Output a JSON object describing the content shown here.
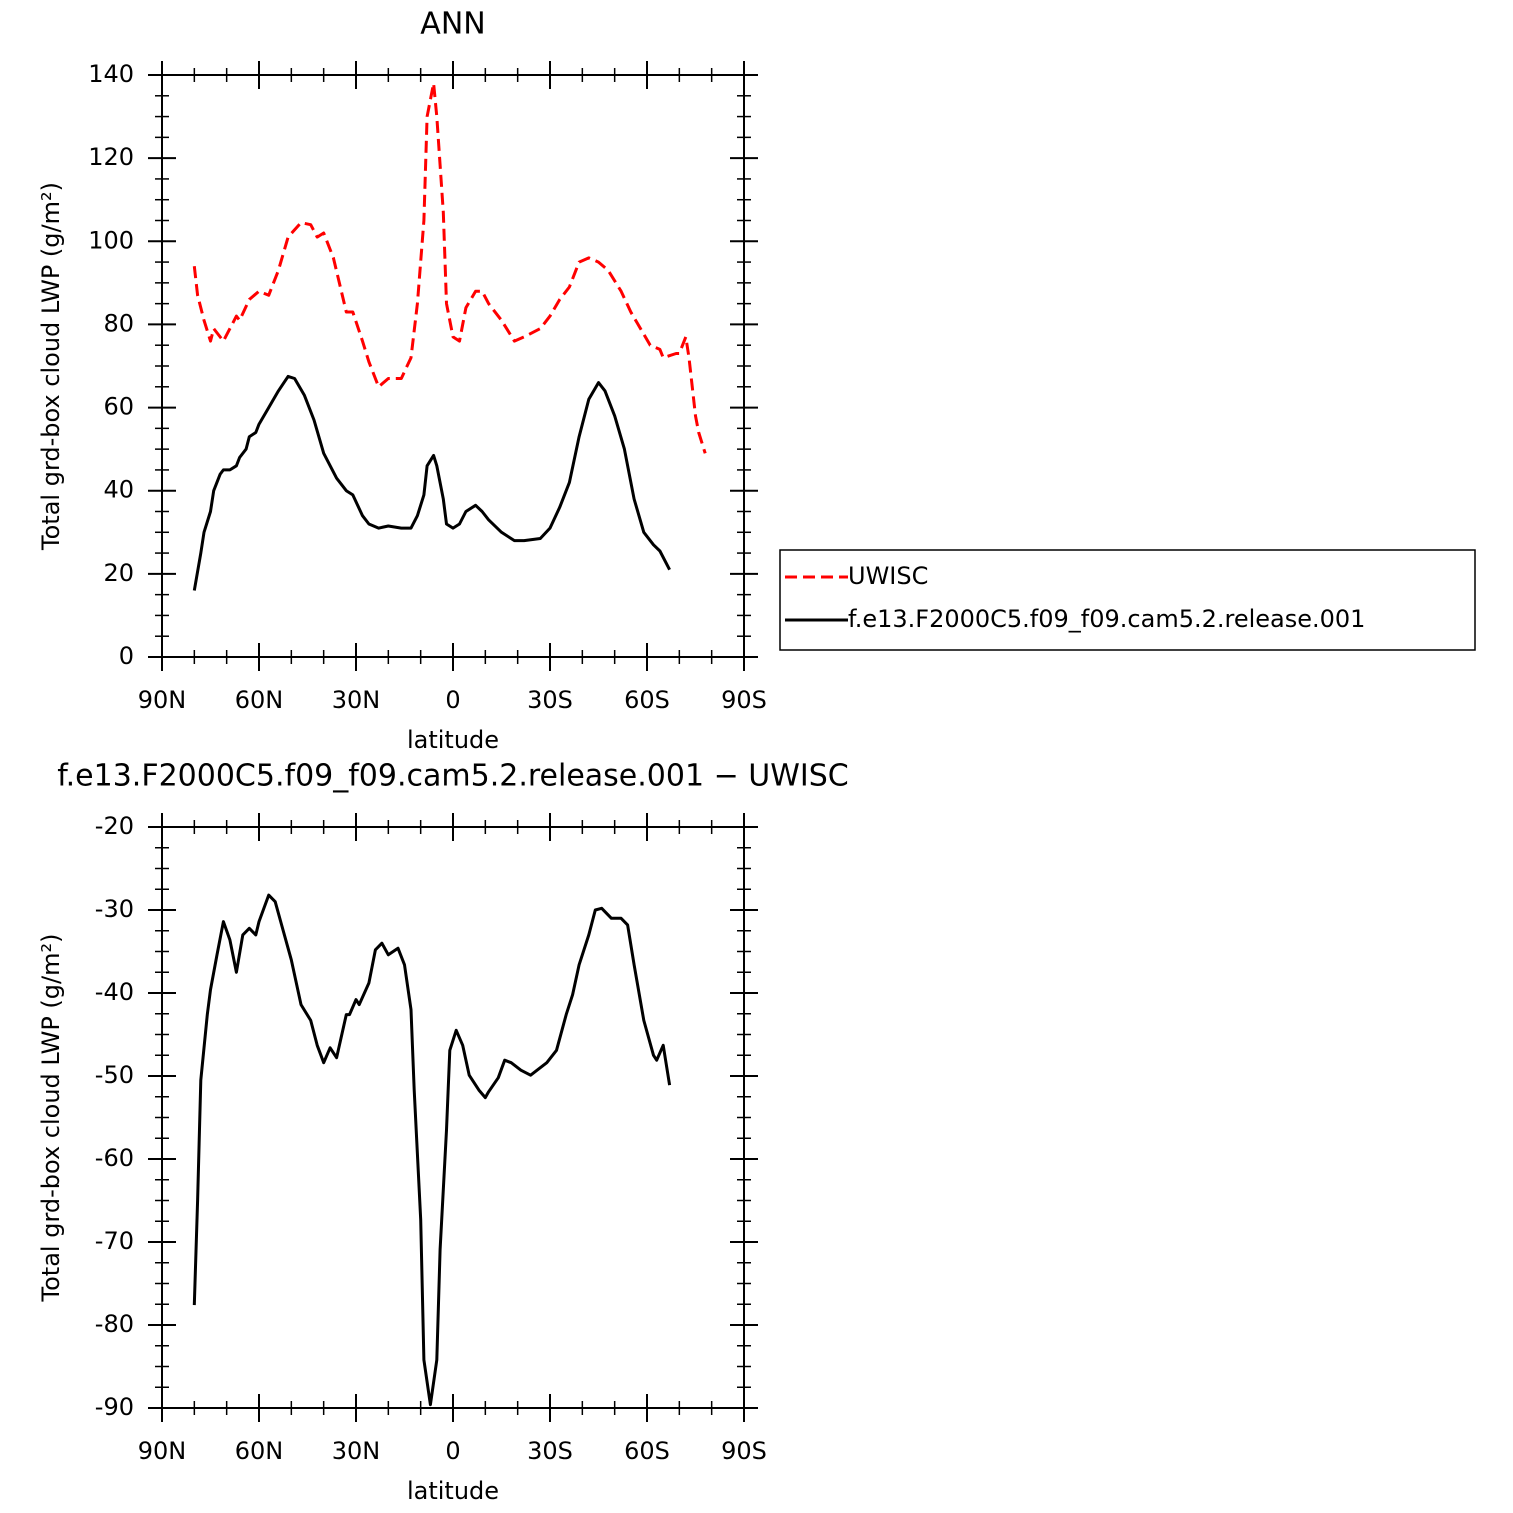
{
  "chart_data": [
    {
      "type": "line",
      "title": "ANN",
      "xlabel": "latitude",
      "ylabel": "Total grd-box cloud LWP (g/m²)",
      "xlim": [
        90,
        -90
      ],
      "xticks": [
        {
          "value": 90,
          "label": "90N"
        },
        {
          "value": 60,
          "label": "60N"
        },
        {
          "value": 30,
          "label": "30N"
        },
        0,
        {
          "value": -30,
          "label": "30S"
        },
        {
          "value": -60,
          "label": "60S"
        },
        {
          "value": -90,
          "label": "90S"
        }
      ],
      "ylim": [
        0,
        140
      ],
      "yticks": [
        0,
        20,
        40,
        60,
        80,
        100,
        120,
        140
      ],
      "legend": "right",
      "series": [
        {
          "name": "UWISC",
          "color": "#ff0000",
          "style": "dashed",
          "x": [
            80,
            79,
            77,
            75,
            74,
            71,
            67,
            66,
            63,
            60,
            57,
            54,
            51,
            47,
            44,
            42,
            40,
            37,
            33,
            31,
            28,
            26,
            23,
            20,
            16,
            13,
            11,
            9,
            8,
            6,
            5,
            3,
            2,
            0,
            -2,
            -4,
            -7,
            -9,
            -11,
            -15,
            -19,
            -22,
            -27,
            -30,
            -33,
            -36,
            -39,
            -42,
            -45,
            -48,
            -52,
            -55,
            -58,
            -61,
            -64,
            -65,
            -69,
            -70,
            -72,
            -73,
            -75,
            -76,
            -78
          ],
          "values": [
            94,
            87,
            81,
            76,
            79,
            76,
            82,
            81,
            86,
            88,
            87,
            93,
            101,
            104.5,
            104,
            101,
            102,
            96,
            83,
            83,
            76,
            71,
            65,
            67,
            67,
            72,
            85,
            105,
            130,
            138,
            130,
            107,
            85,
            77,
            76,
            84,
            88,
            88,
            85,
            81,
            76,
            77,
            79,
            82,
            86,
            89,
            95,
            96,
            95,
            93,
            88,
            83,
            79,
            75,
            74,
            72,
            73,
            73,
            77,
            72,
            58,
            54,
            49
          ]
        },
        {
          "name": "f.e13.F2000C5.f09_f09.cam5.2.release.001",
          "color": "#000000",
          "style": "solid",
          "x": [
            80,
            78,
            77,
            75,
            74,
            72,
            71,
            69,
            67,
            66,
            64,
            63,
            61,
            60,
            57,
            54,
            51,
            49,
            46,
            43,
            40,
            36,
            33,
            31,
            28,
            26,
            23,
            20,
            16,
            13,
            11,
            9,
            8,
            6,
            5,
            3,
            2,
            0,
            -2,
            -4,
            -7,
            -9,
            -11,
            -15,
            -19,
            -22,
            -27,
            -30,
            -33,
            -36,
            -39,
            -42,
            -45,
            -47,
            -50,
            -53,
            -56,
            -59,
            -62,
            -64,
            -67
          ],
          "values": [
            16,
            25,
            30,
            35,
            40,
            44,
            45,
            45,
            46,
            48,
            50,
            53,
            54,
            56,
            60,
            64,
            67.5,
            67,
            63,
            57,
            49,
            43,
            40,
            39,
            34,
            32,
            31,
            31.5,
            31,
            31,
            34,
            39,
            46,
            48.5,
            46,
            38,
            32,
            31,
            32,
            35,
            36.5,
            35,
            33,
            30,
            28,
            28,
            28.5,
            31,
            36,
            42,
            53,
            62,
            66,
            64,
            58,
            50,
            38,
            30,
            27,
            25.5,
            21
          ]
        }
      ]
    },
    {
      "type": "line",
      "title": "f.e13.F2000C5.f09_f09.cam5.2.release.001 − UWISC",
      "xlabel": "latitude",
      "ylabel": "Total grd-box cloud LWP (g/m²)",
      "xlim": [
        90,
        -90
      ],
      "xticks": [
        {
          "value": 90,
          "label": "90N"
        },
        {
          "value": 60,
          "label": "60N"
        },
        {
          "value": 30,
          "label": "30N"
        },
        0,
        {
          "value": -30,
          "label": "30S"
        },
        {
          "value": -60,
          "label": "60S"
        },
        {
          "value": -90,
          "label": "90S"
        }
      ],
      "ylim": [
        -90,
        -20
      ],
      "yticks": [
        -90,
        -80,
        -70,
        -60,
        -50,
        -40,
        -30,
        -20
      ],
      "series": [
        {
          "color": "#000000",
          "style": "solid",
          "x": [
            80,
            79,
            78,
            76,
            75,
            73,
            71,
            69,
            67,
            65,
            63,
            61,
            60,
            57,
            55,
            53,
            50,
            47,
            44,
            42,
            40,
            38,
            36,
            33,
            32,
            30,
            29,
            26,
            24,
            22,
            20,
            17,
            15,
            13,
            12,
            10,
            9,
            7,
            5,
            4,
            2,
            1,
            -1,
            -3,
            -5,
            -8,
            -10,
            -11,
            -14,
            -16,
            -18,
            -21,
            -24,
            -27,
            -29,
            -32,
            -35,
            -37,
            -39,
            -42,
            -44,
            -46,
            -49,
            -52,
            -54,
            -56,
            -59,
            -62,
            -63,
            -65,
            -67
          ],
          "values": [
            -77.6,
            -65,
            -50.5,
            -42.6,
            -39.6,
            -35.4,
            -31.4,
            -33.6,
            -37.5,
            -33,
            -32.2,
            -33,
            -31.4,
            -28.2,
            -29,
            -31.8,
            -36,
            -41.4,
            -43.3,
            -46.3,
            -48.4,
            -46.6,
            -47.8,
            -42.6,
            -42.6,
            -40.8,
            -41.4,
            -38.8,
            -34.8,
            -34,
            -35.4,
            -34.6,
            -36.6,
            -42,
            -51.7,
            -67.3,
            -84.2,
            -89.6,
            -84.2,
            -70.9,
            -56.5,
            -46.9,
            -44.5,
            -46.3,
            -49.9,
            -51.7,
            -52.6,
            -51.9,
            -50.2,
            -48.1,
            -48.4,
            -49.3,
            -49.9,
            -49,
            -48.4,
            -46.9,
            -42.6,
            -40.2,
            -36.6,
            -33,
            -30,
            -29.8,
            -31,
            -31,
            -31.8,
            -36.6,
            -43.3,
            -47.5,
            -48.1,
            -46.3,
            -51.1
          ]
        }
      ]
    }
  ]
}
